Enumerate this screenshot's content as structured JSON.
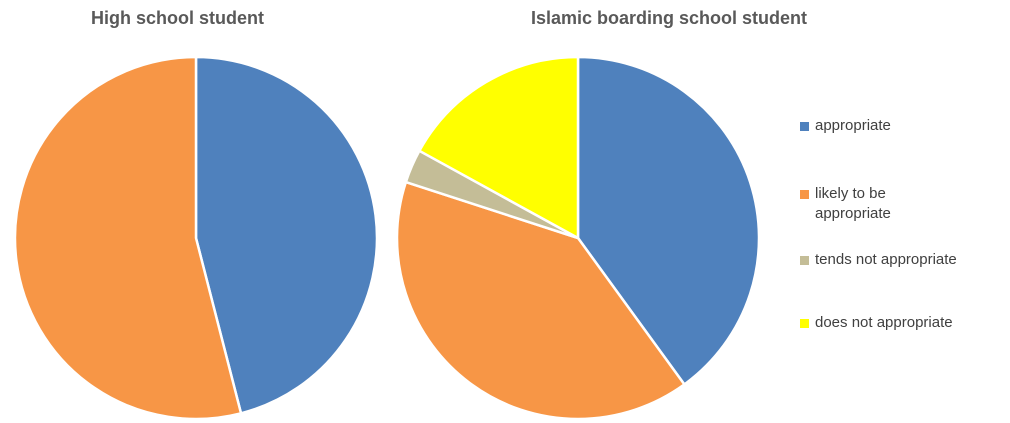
{
  "chart_data": [
    {
      "type": "pie",
      "title": "High school student",
      "categories": [
        "appropriate",
        "likely to be appropriate",
        "tends not appropriate",
        "does not appropriate"
      ],
      "values": [
        46,
        54,
        0,
        0
      ]
    },
    {
      "type": "pie",
      "title": "Islamic boarding school student",
      "categories": [
        "appropriate",
        "likely to be appropriate",
        "tends not appropriate",
        "does not appropriate"
      ],
      "values": [
        40,
        40,
        3,
        17
      ]
    }
  ],
  "colors": [
    "#4F81BD",
    "#F79646",
    "#C4BD97",
    "#FFFF00"
  ],
  "legend": {
    "placement": "right",
    "items": [
      {
        "label": "appropriate",
        "color": "#4F81BD"
      },
      {
        "label": "likely to be appropriate",
        "color": "#F79646"
      },
      {
        "label": "tends not appropriate",
        "color": "#C4BD97"
      },
      {
        "label": "does not appropriate",
        "color": "#FFFF00"
      }
    ]
  }
}
